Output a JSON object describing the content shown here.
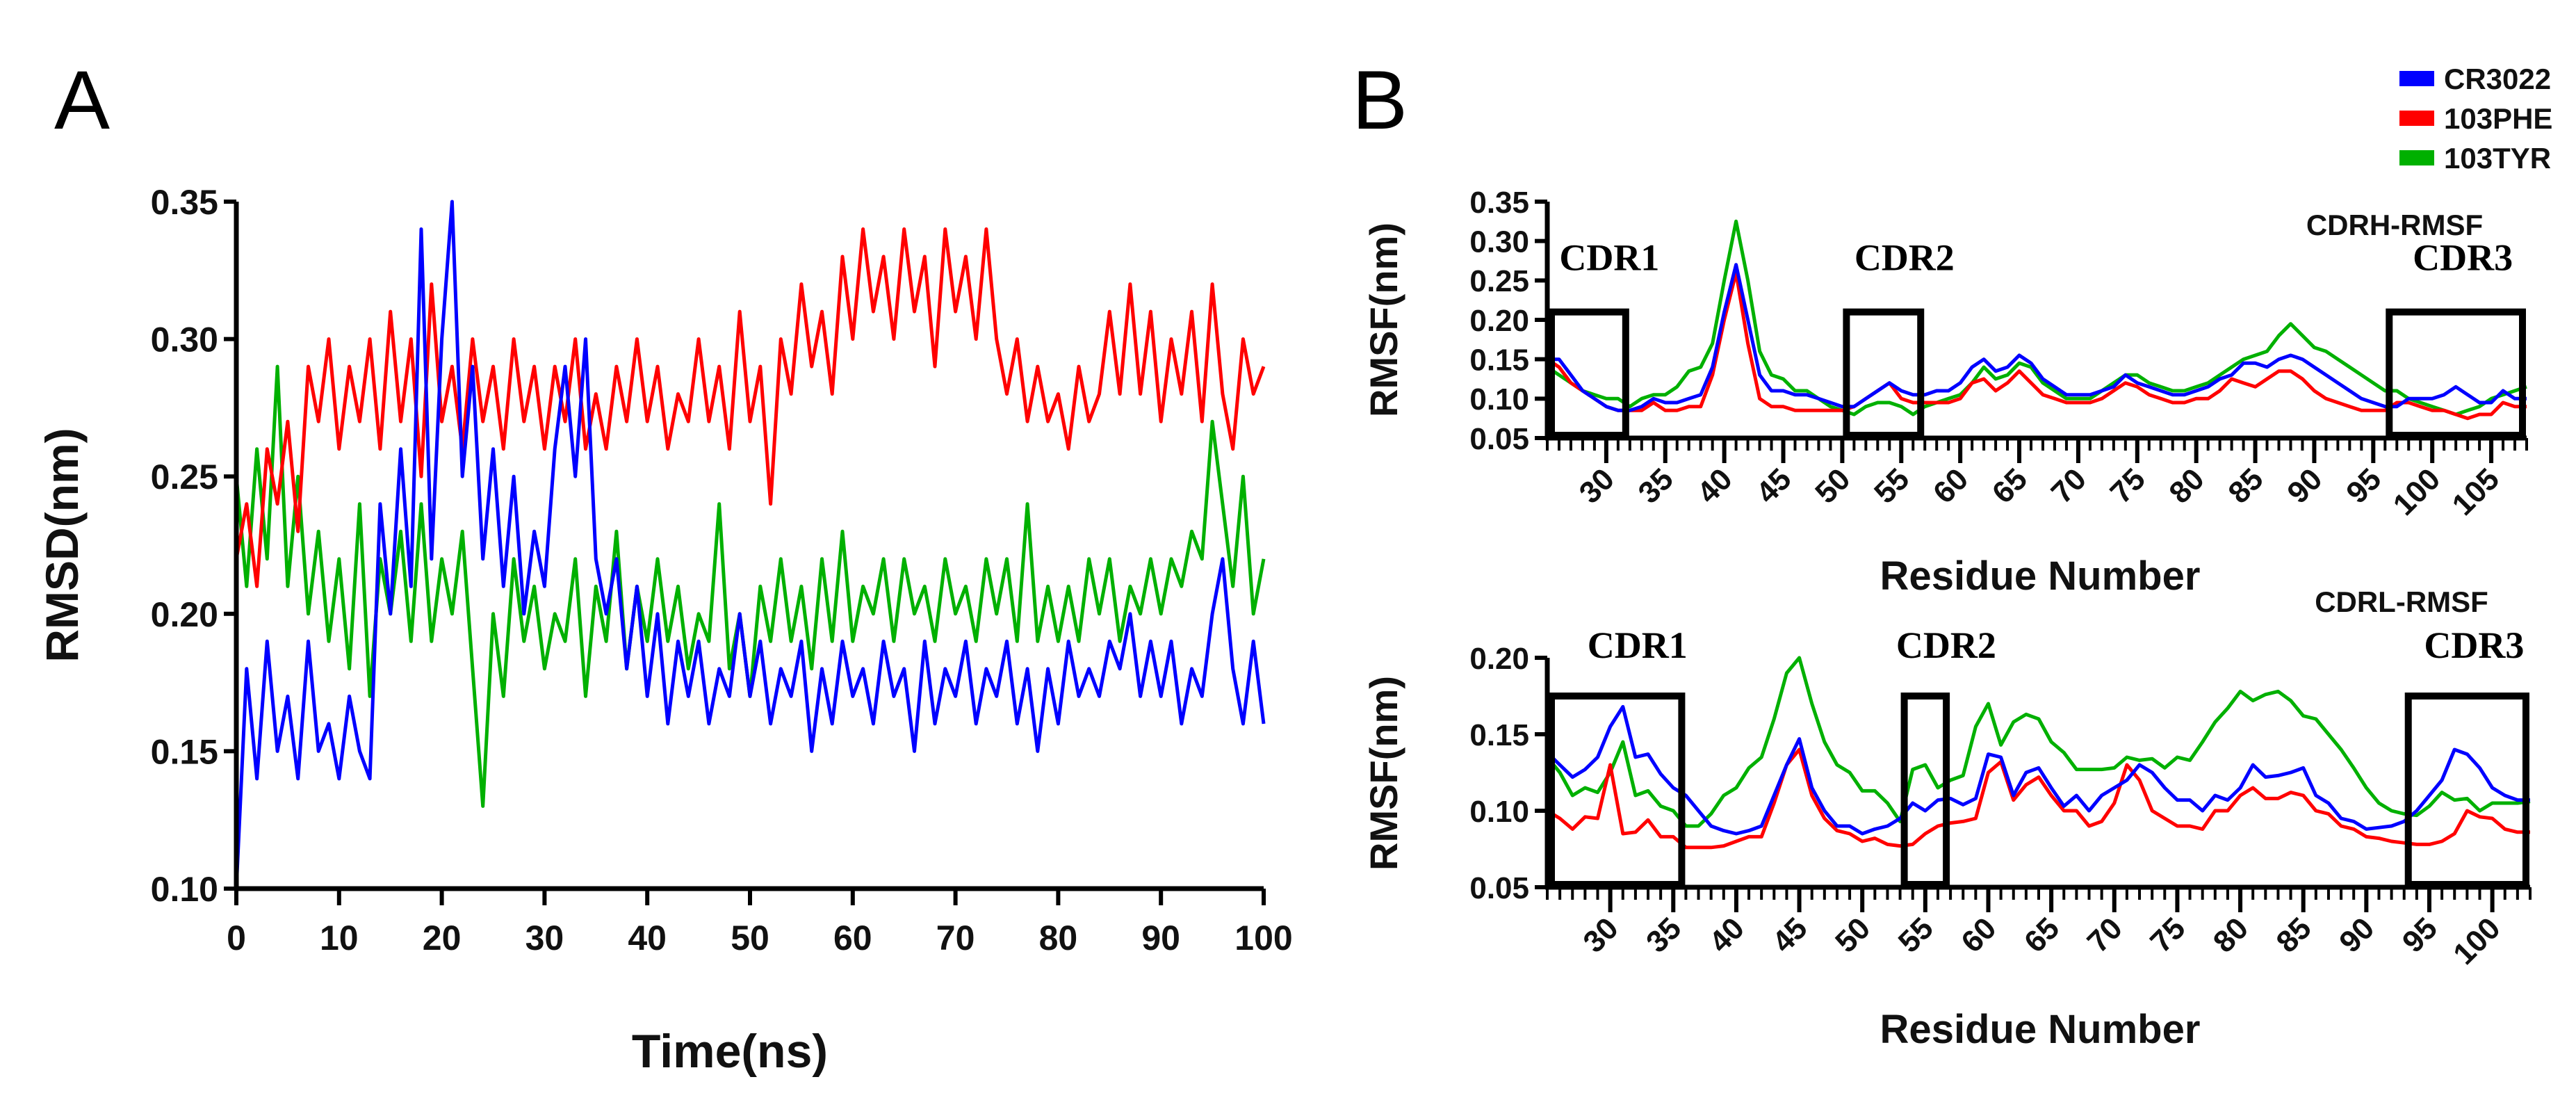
{
  "panel_labels": {
    "a": "A",
    "b": "B"
  },
  "legend": [
    {
      "name": "CR3022",
      "color": "#0000ff"
    },
    {
      "name": "103PHE",
      "color": "#ff0000"
    },
    {
      "name": "103TYR",
      "color": "#00b000"
    }
  ],
  "chart_data": [
    {
      "type": "line",
      "title": "",
      "xlabel": "Time(ns)",
      "ylabel": "RMSD(nm)",
      "xlim": [
        0,
        100
      ],
      "ylim": [
        0.1,
        0.35
      ],
      "xticks": [
        0,
        10,
        20,
        30,
        40,
        50,
        60,
        70,
        80,
        90,
        100
      ],
      "yticks": [
        "0.10",
        "0.15",
        "0.20",
        "0.25",
        "0.30",
        "0.35"
      ],
      "x_start": 0,
      "x_step": 1,
      "series": [
        {
          "name": "103TYR",
          "color": "#00b000",
          "values": [
            0.25,
            0.21,
            0.26,
            0.22,
            0.29,
            0.21,
            0.25,
            0.2,
            0.23,
            0.19,
            0.22,
            0.18,
            0.24,
            0.17,
            0.22,
            0.2,
            0.23,
            0.19,
            0.24,
            0.19,
            0.22,
            0.2,
            0.23,
            0.18,
            0.13,
            0.2,
            0.17,
            0.22,
            0.19,
            0.21,
            0.18,
            0.2,
            0.19,
            0.22,
            0.17,
            0.21,
            0.19,
            0.23,
            0.18,
            0.21,
            0.19,
            0.22,
            0.19,
            0.21,
            0.18,
            0.2,
            0.19,
            0.24,
            0.18,
            0.2,
            0.17,
            0.21,
            0.19,
            0.22,
            0.19,
            0.21,
            0.18,
            0.22,
            0.19,
            0.23,
            0.19,
            0.21,
            0.2,
            0.22,
            0.19,
            0.22,
            0.2,
            0.21,
            0.19,
            0.22,
            0.2,
            0.21,
            0.19,
            0.22,
            0.2,
            0.22,
            0.19,
            0.24,
            0.19,
            0.21,
            0.19,
            0.21,
            0.19,
            0.22,
            0.2,
            0.22,
            0.19,
            0.21,
            0.2,
            0.22,
            0.2,
            0.22,
            0.21,
            0.23,
            0.22,
            0.27,
            0.24,
            0.21,
            0.25,
            0.2,
            0.22
          ]
        },
        {
          "name": "103PHE",
          "color": "#ff0000",
          "values": [
            0.22,
            0.24,
            0.21,
            0.26,
            0.24,
            0.27,
            0.23,
            0.29,
            0.27,
            0.3,
            0.26,
            0.29,
            0.27,
            0.3,
            0.26,
            0.31,
            0.27,
            0.3,
            0.25,
            0.32,
            0.27,
            0.29,
            0.26,
            0.3,
            0.27,
            0.29,
            0.26,
            0.3,
            0.27,
            0.29,
            0.26,
            0.29,
            0.27,
            0.3,
            0.26,
            0.28,
            0.26,
            0.29,
            0.27,
            0.3,
            0.27,
            0.29,
            0.26,
            0.28,
            0.27,
            0.3,
            0.27,
            0.29,
            0.26,
            0.31,
            0.27,
            0.29,
            0.24,
            0.3,
            0.28,
            0.32,
            0.29,
            0.31,
            0.28,
            0.33,
            0.3,
            0.34,
            0.31,
            0.33,
            0.3,
            0.34,
            0.31,
            0.33,
            0.29,
            0.34,
            0.31,
            0.33,
            0.3,
            0.34,
            0.3,
            0.28,
            0.3,
            0.27,
            0.29,
            0.27,
            0.28,
            0.26,
            0.29,
            0.27,
            0.28,
            0.31,
            0.28,
            0.32,
            0.28,
            0.31,
            0.27,
            0.3,
            0.28,
            0.31,
            0.27,
            0.32,
            0.28,
            0.26,
            0.3,
            0.28,
            0.29
          ]
        },
        {
          "name": "CR3022",
          "color": "#0000ff",
          "values": [
            0.1,
            0.18,
            0.14,
            0.19,
            0.15,
            0.17,
            0.14,
            0.19,
            0.15,
            0.16,
            0.14,
            0.17,
            0.15,
            0.14,
            0.24,
            0.2,
            0.26,
            0.21,
            0.34,
            0.22,
            0.3,
            0.35,
            0.25,
            0.29,
            0.22,
            0.26,
            0.21,
            0.25,
            0.2,
            0.23,
            0.21,
            0.26,
            0.29,
            0.25,
            0.3,
            0.22,
            0.2,
            0.22,
            0.18,
            0.21,
            0.17,
            0.2,
            0.16,
            0.19,
            0.17,
            0.19,
            0.16,
            0.18,
            0.17,
            0.2,
            0.17,
            0.19,
            0.16,
            0.18,
            0.17,
            0.19,
            0.15,
            0.18,
            0.16,
            0.19,
            0.17,
            0.18,
            0.16,
            0.19,
            0.17,
            0.18,
            0.15,
            0.19,
            0.16,
            0.18,
            0.17,
            0.19,
            0.16,
            0.18,
            0.17,
            0.19,
            0.16,
            0.18,
            0.15,
            0.18,
            0.16,
            0.19,
            0.17,
            0.18,
            0.17,
            0.19,
            0.18,
            0.2,
            0.17,
            0.19,
            0.17,
            0.19,
            0.16,
            0.18,
            0.17,
            0.2,
            0.22,
            0.18,
            0.16,
            0.19,
            0.16
          ]
        }
      ]
    },
    {
      "type": "line",
      "title": "CDRH-RMSF",
      "xlabel": "Residue Number",
      "ylabel": "RMSF(nm)",
      "xlim": [
        25,
        108
      ],
      "ylim": [
        0.05,
        0.35
      ],
      "xticks": [
        30,
        35,
        40,
        45,
        50,
        55,
        60,
        65,
        70,
        75,
        80,
        85,
        90,
        95,
        100,
        105
      ],
      "yticks": [
        "0.05",
        "0.10",
        "0.15",
        "0.20",
        "0.25",
        "0.30",
        "0.35"
      ],
      "regions": [
        {
          "label": "CDR1",
          "from": 25,
          "to": 32,
          "ymax": 0.21
        },
        {
          "label": "CDR2",
          "from": 50,
          "to": 57,
          "ymax": 0.21
        },
        {
          "label": "CDR3",
          "from": 96,
          "to": 108,
          "ymax": 0.21
        }
      ],
      "x_start": 25,
      "x_step": 1,
      "series": [
        {
          "name": "103TYR",
          "color": "#00b000",
          "values": [
            0.14,
            0.13,
            0.12,
            0.11,
            0.105,
            0.1,
            0.1,
            0.09,
            0.1,
            0.105,
            0.105,
            0.115,
            0.135,
            0.14,
            0.17,
            0.25,
            0.325,
            0.25,
            0.16,
            0.13,
            0.125,
            0.11,
            0.11,
            0.1,
            0.09,
            0.085,
            0.08,
            0.09,
            0.095,
            0.095,
            0.09,
            0.08,
            0.09,
            0.095,
            0.1,
            0.105,
            0.12,
            0.14,
            0.125,
            0.13,
            0.145,
            0.14,
            0.12,
            0.11,
            0.1,
            0.1,
            0.1,
            0.11,
            0.12,
            0.13,
            0.13,
            0.12,
            0.115,
            0.11,
            0.11,
            0.115,
            0.12,
            0.13,
            0.14,
            0.15,
            0.155,
            0.16,
            0.18,
            0.195,
            0.18,
            0.165,
            0.16,
            0.15,
            0.14,
            0.13,
            0.12,
            0.11,
            0.11,
            0.1,
            0.095,
            0.09,
            0.085,
            0.08,
            0.085,
            0.09,
            0.1,
            0.105,
            0.11,
            0.115
          ]
        },
        {
          "name": "103PHE",
          "color": "#ff0000",
          "values": [
            0.15,
            0.14,
            0.12,
            0.11,
            0.1,
            0.09,
            0.085,
            0.085,
            0.085,
            0.095,
            0.085,
            0.085,
            0.09,
            0.09,
            0.13,
            0.2,
            0.26,
            0.17,
            0.1,
            0.09,
            0.09,
            0.085,
            0.085,
            0.085,
            0.085,
            0.085,
            0.09,
            0.1,
            0.11,
            0.12,
            0.1,
            0.095,
            0.095,
            0.095,
            0.095,
            0.1,
            0.12,
            0.125,
            0.11,
            0.12,
            0.135,
            0.12,
            0.105,
            0.1,
            0.095,
            0.095,
            0.095,
            0.1,
            0.11,
            0.12,
            0.115,
            0.105,
            0.1,
            0.095,
            0.095,
            0.1,
            0.1,
            0.11,
            0.125,
            0.12,
            0.115,
            0.125,
            0.135,
            0.135,
            0.125,
            0.11,
            0.1,
            0.095,
            0.09,
            0.085,
            0.085,
            0.085,
            0.095,
            0.095,
            0.09,
            0.085,
            0.085,
            0.08,
            0.075,
            0.08,
            0.08,
            0.095,
            0.09,
            0.09
          ]
        },
        {
          "name": "CR3022",
          "color": "#0000ff",
          "values": [
            0.15,
            0.15,
            0.13,
            0.11,
            0.1,
            0.09,
            0.085,
            0.085,
            0.09,
            0.1,
            0.095,
            0.095,
            0.1,
            0.105,
            0.14,
            0.21,
            0.27,
            0.2,
            0.13,
            0.11,
            0.11,
            0.105,
            0.105,
            0.1,
            0.095,
            0.09,
            0.09,
            0.1,
            0.11,
            0.12,
            0.11,
            0.105,
            0.105,
            0.11,
            0.11,
            0.12,
            0.14,
            0.15,
            0.135,
            0.14,
            0.155,
            0.145,
            0.125,
            0.115,
            0.105,
            0.105,
            0.105,
            0.11,
            0.115,
            0.13,
            0.12,
            0.115,
            0.11,
            0.105,
            0.105,
            0.11,
            0.115,
            0.125,
            0.13,
            0.145,
            0.145,
            0.14,
            0.15,
            0.155,
            0.15,
            0.14,
            0.13,
            0.12,
            0.11,
            0.1,
            0.095,
            0.09,
            0.09,
            0.1,
            0.1,
            0.1,
            0.105,
            0.115,
            0.105,
            0.095,
            0.095,
            0.11,
            0.1,
            0.1
          ]
        }
      ]
    },
    {
      "type": "line",
      "title": "CDRL-RMSF",
      "xlabel": "Residue Number",
      "ylabel": "RMSF(nm)",
      "xlim": [
        25,
        103
      ],
      "ylim": [
        0.05,
        0.2
      ],
      "xticks": [
        30,
        35,
        40,
        45,
        50,
        55,
        60,
        65,
        70,
        75,
        80,
        85,
        90,
        95,
        100
      ],
      "yticks": [
        "0.05",
        "0.10",
        "0.15",
        "0.20"
      ],
      "regions": [
        {
          "label": "CDR1",
          "from": 25,
          "to": 36,
          "ymax": 0.175
        },
        {
          "label": "CDR2",
          "from": 53,
          "to": 57,
          "ymax": 0.175
        },
        {
          "label": "CDR3",
          "from": 93,
          "to": 103,
          "ymax": 0.175
        }
      ],
      "x_start": 25,
      "x_step": 1,
      "series": [
        {
          "name": "103TYR",
          "color": "#00b000",
          "values": [
            0.135,
            0.125,
            0.11,
            0.115,
            0.112,
            0.125,
            0.145,
            0.11,
            0.113,
            0.103,
            0.1,
            0.09,
            0.09,
            0.098,
            0.11,
            0.115,
            0.128,
            0.135,
            0.16,
            0.19,
            0.2,
            0.17,
            0.145,
            0.13,
            0.125,
            0.113,
            0.113,
            0.105,
            0.093,
            0.127,
            0.13,
            0.115,
            0.12,
            0.123,
            0.155,
            0.17,
            0.143,
            0.158,
            0.163,
            0.16,
            0.145,
            0.138,
            0.127,
            0.127,
            0.127,
            0.128,
            0.135,
            0.133,
            0.134,
            0.128,
            0.135,
            0.133,
            0.145,
            0.158,
            0.167,
            0.178,
            0.172,
            0.176,
            0.178,
            0.172,
            0.162,
            0.16,
            0.15,
            0.14,
            0.128,
            0.115,
            0.105,
            0.1,
            0.098,
            0.097,
            0.103,
            0.112,
            0.107,
            0.108,
            0.1,
            0.105,
            0.105,
            0.105,
            0.106
          ]
        },
        {
          "name": "103PHE",
          "color": "#ff0000",
          "values": [
            0.1,
            0.095,
            0.088,
            0.096,
            0.095,
            0.13,
            0.085,
            0.086,
            0.094,
            0.083,
            0.083,
            0.076,
            0.076,
            0.076,
            0.077,
            0.08,
            0.083,
            0.083,
            0.105,
            0.13,
            0.14,
            0.11,
            0.095,
            0.087,
            0.085,
            0.08,
            0.082,
            0.078,
            0.077,
            0.078,
            0.085,
            0.09,
            0.092,
            0.093,
            0.095,
            0.125,
            0.132,
            0.107,
            0.117,
            0.122,
            0.11,
            0.1,
            0.1,
            0.09,
            0.093,
            0.105,
            0.13,
            0.12,
            0.1,
            0.095,
            0.09,
            0.09,
            0.088,
            0.1,
            0.1,
            0.11,
            0.115,
            0.108,
            0.108,
            0.112,
            0.11,
            0.1,
            0.098,
            0.09,
            0.088,
            0.083,
            0.082,
            0.08,
            0.079,
            0.078,
            0.078,
            0.08,
            0.085,
            0.1,
            0.096,
            0.095,
            0.088,
            0.086,
            0.086
          ]
        },
        {
          "name": "CR3022",
          "color": "#0000ff",
          "values": [
            0.138,
            0.13,
            0.122,
            0.127,
            0.135,
            0.155,
            0.168,
            0.135,
            0.137,
            0.124,
            0.115,
            0.11,
            0.1,
            0.09,
            0.087,
            0.085,
            0.087,
            0.09,
            0.11,
            0.13,
            0.147,
            0.115,
            0.1,
            0.09,
            0.09,
            0.085,
            0.088,
            0.09,
            0.095,
            0.105,
            0.1,
            0.107,
            0.108,
            0.104,
            0.108,
            0.137,
            0.135,
            0.11,
            0.125,
            0.128,
            0.115,
            0.103,
            0.11,
            0.1,
            0.11,
            0.115,
            0.12,
            0.13,
            0.125,
            0.115,
            0.107,
            0.107,
            0.1,
            0.11,
            0.107,
            0.115,
            0.13,
            0.122,
            0.123,
            0.125,
            0.128,
            0.11,
            0.105,
            0.095,
            0.093,
            0.088,
            0.089,
            0.09,
            0.093,
            0.1,
            0.11,
            0.12,
            0.14,
            0.137,
            0.128,
            0.115,
            0.11,
            0.107,
            0.107
          ]
        }
      ]
    }
  ]
}
